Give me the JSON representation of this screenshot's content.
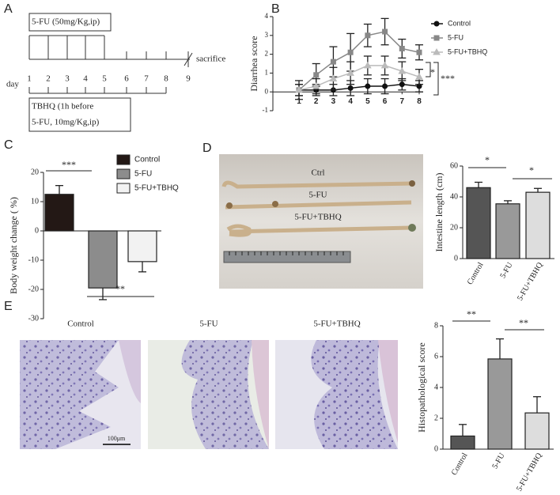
{
  "panels": {
    "a": "A",
    "b": "B",
    "c": "C",
    "d": "D",
    "e": "E"
  },
  "timeline": {
    "treatment": "5-FU (50mg/Kg,ip)",
    "day": "day",
    "days": [
      "1",
      "2",
      "3",
      "4",
      "5",
      "6",
      "7",
      "8",
      "9"
    ],
    "end": "sacrifice",
    "pretreatment": [
      "TBHQ (1h before",
      "5-FU, 10mg/Kg,ip)"
    ]
  },
  "photo": {
    "labels": [
      "Ctrl",
      "5-FU",
      "5-FU+TBHQ"
    ]
  },
  "histology": {
    "labels": [
      "Control",
      "5-FU",
      "5-FU+TBHQ"
    ],
    "scale": "100μm"
  },
  "chart_data": [
    {
      "type": "line",
      "ylabel": "Diarrhea score",
      "categories": [
        "1",
        "2",
        "3",
        "4",
        "5",
        "6",
        "7",
        "8"
      ],
      "ylim": [
        -1,
        4
      ],
      "yticks": [
        -1,
        0,
        1,
        2,
        3,
        4
      ],
      "series": [
        {
          "name": "Control",
          "color": "#111111",
          "marker": "circle",
          "values": [
            0.1,
            0.1,
            0.1,
            0.2,
            0.3,
            0.3,
            0.4,
            0.3
          ],
          "errors": [
            0.3,
            0.3,
            0.3,
            0.4,
            0.4,
            0.4,
            0.3,
            0.3
          ]
        },
        {
          "name": "5-FU",
          "color": "#888888",
          "marker": "square",
          "values": [
            0.1,
            0.9,
            1.6,
            2.1,
            3.0,
            3.2,
            2.3,
            2.1
          ],
          "errors": [
            0.5,
            0.6,
            0.8,
            1.0,
            0.6,
            0.7,
            0.5,
            0.4
          ]
        },
        {
          "name": "5-FU+TBHQ",
          "color": "#bbbbbb",
          "marker": "triangle",
          "values": [
            0.1,
            0.3,
            0.7,
            1.0,
            1.4,
            1.4,
            1.1,
            0.8
          ],
          "errors": [
            0.3,
            0.4,
            0.6,
            0.6,
            0.5,
            0.5,
            0.5,
            0.4
          ]
        }
      ],
      "annotations": [
        "*",
        "***"
      ]
    },
    {
      "type": "bar",
      "ylabel": "Body weight change ( %)",
      "ylim": [
        -30,
        20
      ],
      "yticks": [
        -30,
        -20,
        -10,
        0,
        10,
        20
      ],
      "series": [
        {
          "name": "Control",
          "color": "#231815",
          "values": [
            12.5
          ],
          "errors": [
            3
          ]
        },
        {
          "name": "5-FU",
          "color": "#8c8c8c",
          "values": [
            -19.5
          ],
          "errors": [
            4
          ]
        },
        {
          "name": "5-FU+TBHQ",
          "color": "#f2f2f2",
          "values": [
            -10.5
          ],
          "errors": [
            3.5
          ]
        }
      ],
      "annotations": [
        "***",
        "**"
      ]
    },
    {
      "type": "bar",
      "ylabel": "Intestine length (cm)",
      "categories": [
        "Control",
        "5-FU",
        "5-FU+TBHQ"
      ],
      "values": [
        46,
        35.5,
        43
      ],
      "errors": [
        3.5,
        2,
        2.5
      ],
      "colors": [
        "#555555",
        "#999999",
        "#dddddd"
      ],
      "ylim": [
        0,
        60
      ],
      "yticks": [
        0,
        20,
        40,
        60
      ],
      "annotations": [
        "*",
        "*"
      ]
    },
    {
      "type": "bar",
      "ylabel": "Histopathological score",
      "categories": [
        "Control",
        "5-FU",
        "5-FU+TBHQ"
      ],
      "values": [
        0.85,
        5.85,
        2.35
      ],
      "errors": [
        0.75,
        1.3,
        1.05
      ],
      "colors": [
        "#555555",
        "#999999",
        "#dddddd"
      ],
      "ylim": [
        0,
        8
      ],
      "yticks": [
        0,
        2,
        4,
        6,
        8
      ],
      "annotations": [
        "**",
        "**"
      ]
    }
  ]
}
